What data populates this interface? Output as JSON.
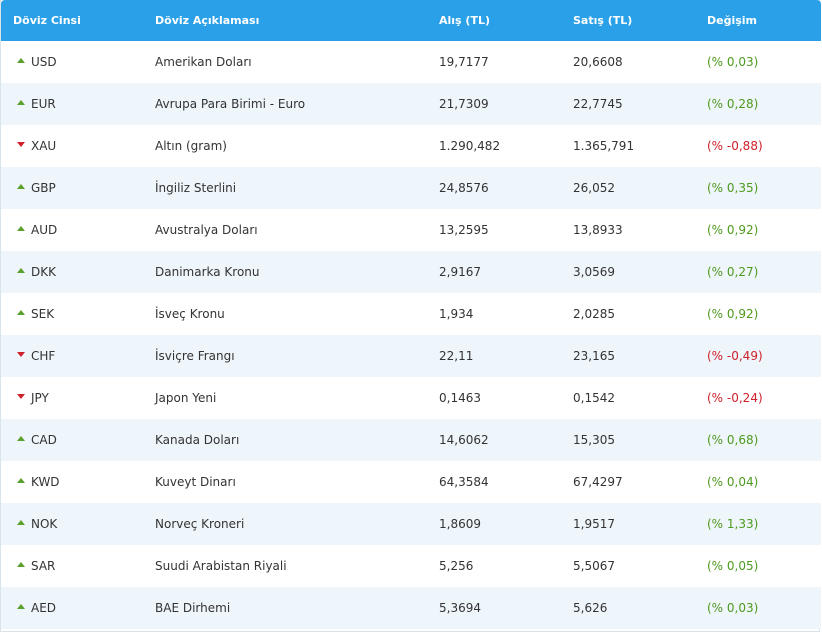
{
  "columns": {
    "code": "Döviz Cinsi",
    "description": "Döviz Açıklaması",
    "buy": "Alış (TL)",
    "sell": "Satış (TL)",
    "change": "Değişim"
  },
  "colors": {
    "header_bg": "#2aa0e8",
    "row_alt_bg": "#eef5fb",
    "up": "#4e9a1e",
    "down": "#d0202a"
  },
  "rows": [
    {
      "code": "USD",
      "description": "Amerikan Doları",
      "buy": "19,7177",
      "sell": "20,6608",
      "change": "(% 0,03)",
      "direction": "up"
    },
    {
      "code": "EUR",
      "description": "Avrupa Para Birimi - Euro",
      "buy": "21,7309",
      "sell": "22,7745",
      "change": "(% 0,28)",
      "direction": "up"
    },
    {
      "code": "XAU",
      "description": "Altın (gram)",
      "buy": "1.290,482",
      "sell": "1.365,791",
      "change": "(% -0,88)",
      "direction": "down"
    },
    {
      "code": "GBP",
      "description": "İngiliz Sterlini",
      "buy": "24,8576",
      "sell": "26,052",
      "change": "(% 0,35)",
      "direction": "up"
    },
    {
      "code": "AUD",
      "description": "Avustralya Doları",
      "buy": "13,2595",
      "sell": "13,8933",
      "change": "(% 0,92)",
      "direction": "up"
    },
    {
      "code": "DKK",
      "description": "Danimarka Kronu",
      "buy": "2,9167",
      "sell": "3,0569",
      "change": "(% 0,27)",
      "direction": "up"
    },
    {
      "code": "SEK",
      "description": "İsveç Kronu",
      "buy": "1,934",
      "sell": "2,0285",
      "change": "(% 0,92)",
      "direction": "up"
    },
    {
      "code": "CHF",
      "description": "İsviçre Frangı",
      "buy": "22,11",
      "sell": "23,165",
      "change": "(% -0,49)",
      "direction": "down"
    },
    {
      "code": "JPY",
      "description": "Japon Yeni",
      "buy": "0,1463",
      "sell": "0,1542",
      "change": "(% -0,24)",
      "direction": "down"
    },
    {
      "code": "CAD",
      "description": "Kanada Doları",
      "buy": "14,6062",
      "sell": "15,305",
      "change": "(% 0,68)",
      "direction": "up"
    },
    {
      "code": "KWD",
      "description": "Kuveyt Dinarı",
      "buy": "64,3584",
      "sell": "67,4297",
      "change": "(% 0,04)",
      "direction": "up"
    },
    {
      "code": "NOK",
      "description": "Norveç Kroneri",
      "buy": "1,8609",
      "sell": "1,9517",
      "change": "(% 1,33)",
      "direction": "up"
    },
    {
      "code": "SAR",
      "description": "Suudi Arabistan Riyali",
      "buy": "5,256",
      "sell": "5,5067",
      "change": "(% 0,05)",
      "direction": "up"
    },
    {
      "code": "AED",
      "description": "BAE Dirhemi",
      "buy": "5,3694",
      "sell": "5,626",
      "change": "(% 0,03)",
      "direction": "up"
    }
  ]
}
